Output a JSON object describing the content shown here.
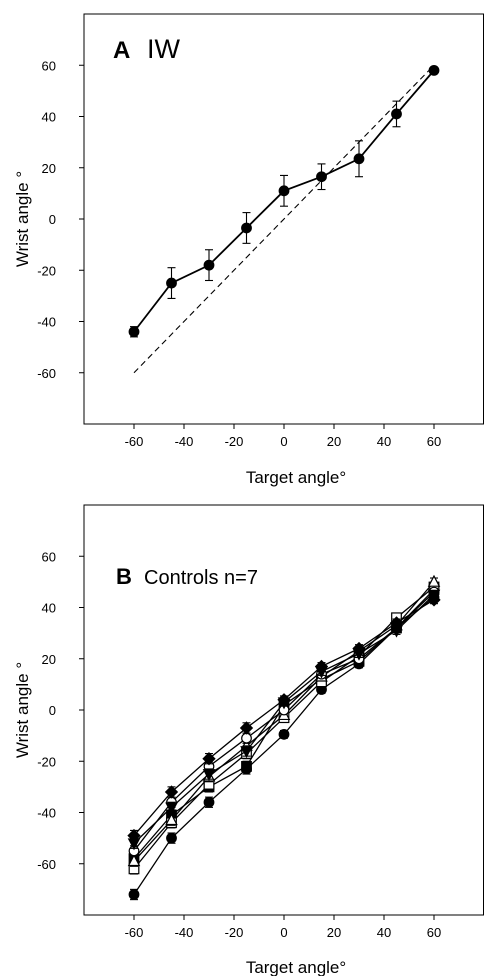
{
  "chart_data": [
    {
      "type": "line",
      "panel_letter": "A",
      "title": "IW",
      "xlabel": "Target angle°",
      "ylabel": "Wrist angle °",
      "xlim": [
        -80,
        80
      ],
      "ylim": [
        -80,
        80
      ],
      "x_ticks": [
        -60,
        -40,
        -20,
        0,
        20,
        40,
        60
      ],
      "y_ticks": [
        -60,
        -40,
        -20,
        0,
        20,
        40,
        60
      ],
      "grid": false,
      "x": [
        -60,
        -45,
        -30,
        -15,
        0,
        15,
        30,
        45,
        60
      ],
      "series": [
        {
          "marker": "filled-circle",
          "values": [
            -44,
            -25,
            -18,
            -3.5,
            11,
            16.5,
            23.5,
            41,
            58
          ],
          "errors": [
            2,
            6,
            6,
            6,
            6,
            5,
            7,
            5,
            1
          ]
        }
      ],
      "reference_line": {
        "style": "dashed",
        "from": [
          -60,
          -60
        ],
        "to": [
          60,
          60
        ]
      }
    },
    {
      "type": "line",
      "panel_letter": "B",
      "title": "Controls n=7",
      "xlabel": "Target angle°",
      "ylabel": "Wrist angle °",
      "xlim": [
        -80,
        80
      ],
      "ylim": [
        -80,
        80
      ],
      "x_ticks": [
        -60,
        -40,
        -20,
        0,
        20,
        40,
        60
      ],
      "y_ticks": [
        -60,
        -40,
        -20,
        0,
        20,
        40,
        60
      ],
      "grid": false,
      "x": [
        -60,
        -45,
        -30,
        -15,
        0,
        15,
        30,
        45,
        60
      ],
      "series": [
        {
          "marker": "filled-circle",
          "values": [
            -72,
            -50,
            -36,
            -23,
            -9.5,
            8,
            18,
            32,
            44
          ],
          "errors": [
            2,
            2,
            2,
            2,
            1.5,
            1.5,
            1.5,
            1.5,
            1.5
          ]
        },
        {
          "marker": "filled-square",
          "values": [
            -58,
            -41,
            -30,
            -22,
            2,
            12,
            19,
            32,
            47
          ],
          "errors": [
            2,
            2,
            2,
            2,
            1.5,
            1.5,
            1.5,
            1.5,
            1.5
          ]
        },
        {
          "marker": "open-square",
          "values": [
            -62,
            -44,
            -29,
            -17,
            -3,
            11,
            21,
            36,
            48
          ],
          "errors": [
            2,
            2,
            2,
            2,
            1.5,
            1.5,
            1.5,
            1.5,
            1.5
          ]
        },
        {
          "marker": "open-triangle",
          "values": [
            -59,
            -43,
            -26,
            -14,
            -2,
            13,
            23,
            33,
            50
          ],
          "errors": [
            2,
            2,
            2,
            2,
            1.5,
            1.5,
            1.5,
            1.5,
            1.5
          ]
        },
        {
          "marker": "open-circle",
          "values": [
            -55,
            -36,
            -22,
            -11,
            0,
            14,
            20,
            32,
            46
          ],
          "errors": [
            2,
            2,
            2,
            2,
            1.5,
            1.5,
            1.5,
            1.5,
            1.5
          ]
        },
        {
          "marker": "filled-triangle-down",
          "values": [
            -52,
            -38,
            -25,
            -16,
            3,
            15,
            22,
            31,
            45
          ],
          "errors": [
            2,
            2,
            2,
            2,
            1.5,
            1.5,
            1.5,
            1.5,
            1.5
          ]
        },
        {
          "marker": "filled-diamond",
          "values": [
            -49,
            -32,
            -19,
            -7,
            4,
            17,
            24,
            34,
            43
          ],
          "errors": [
            2,
            2,
            2,
            2,
            1.5,
            1.5,
            1.5,
            1.5,
            1.5
          ]
        }
      ]
    }
  ]
}
